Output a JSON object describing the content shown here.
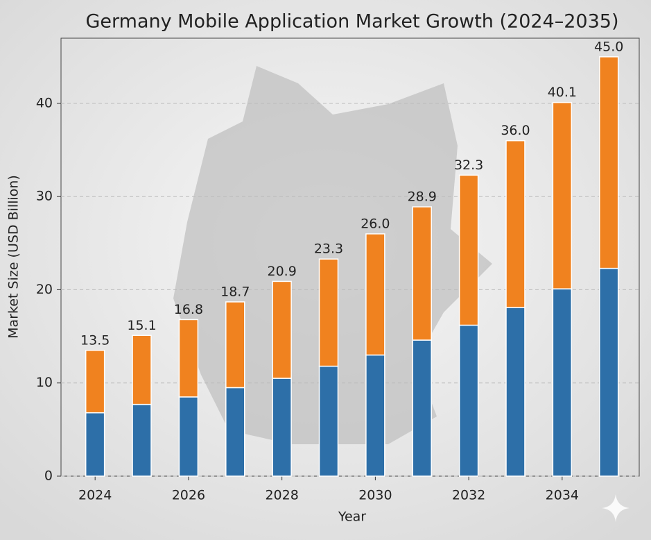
{
  "chart_data": {
    "type": "stacked-bar",
    "title": "Germany Mobile Application Market Growth (2024–2035)",
    "x_label": "Year",
    "y_label": "Market Size (USD Billion)",
    "x": [
      2024,
      2025,
      2026,
      2027,
      2028,
      2029,
      2030,
      2031,
      2032,
      2033,
      2034,
      2035
    ],
    "series": [
      {
        "color": "#2d6fa8",
        "values": [
          6.8,
          7.7,
          8.5,
          9.5,
          10.5,
          11.8,
          13.0,
          14.6,
          16.2,
          18.1,
          20.1,
          22.3
        ]
      },
      {
        "color": "#f0821f",
        "values": [
          6.7,
          7.4,
          8.3,
          9.2,
          10.4,
          11.5,
          13.0,
          14.3,
          16.1,
          17.9,
          20.0,
          22.7
        ]
      }
    ],
    "totals": {
      "values": [
        13.5,
        15.1,
        16.8,
        18.7,
        20.9,
        23.3,
        26.0,
        28.9,
        32.3,
        36.0,
        40.1,
        45.0
      ],
      "value_labels": [
        "13.5",
        "15.1",
        "16.8",
        "18.7",
        "20.9",
        "23.3",
        "26.0",
        "28.9",
        "32.3",
        "36.0",
        "40.1",
        "45.0"
      ]
    },
    "xlim": [
      2023.27,
      2035.65
    ],
    "xticks": [
      2024,
      2026,
      2028,
      2030,
      2032,
      2034
    ],
    "ylim": [
      0,
      47
    ],
    "yticks": [
      0,
      10,
      20,
      30,
      40
    ],
    "grid": true
  }
}
